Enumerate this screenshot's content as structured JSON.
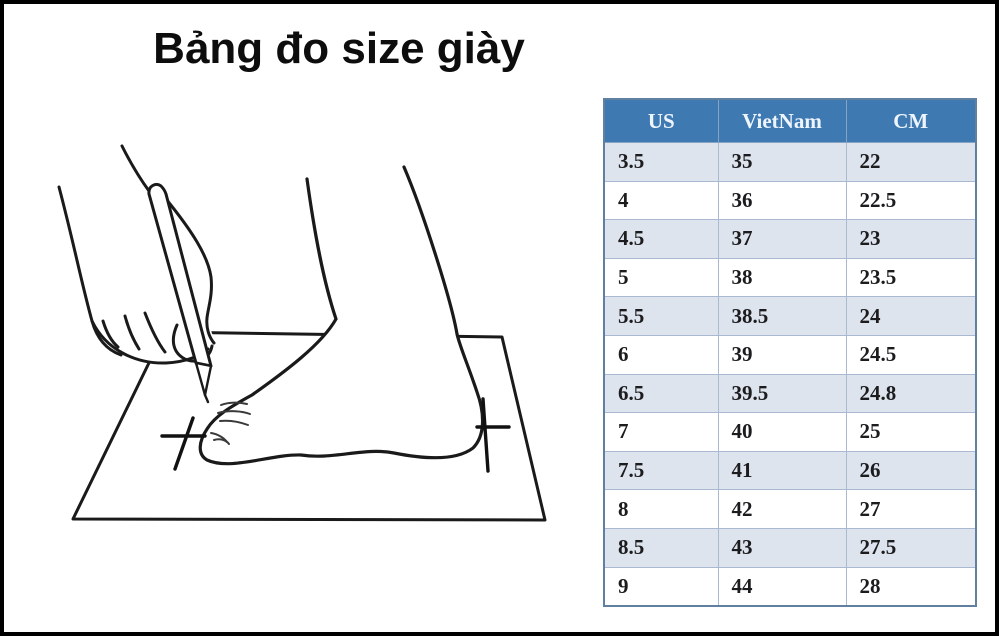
{
  "title": "Bảng đo size giày",
  "illustration": {
    "name": "foot-tracing-illustration",
    "elements": [
      "paper-sheet",
      "foot-on-paper",
      "hand-holding-pen",
      "toe-mark-cross",
      "heel-mark-cross"
    ]
  },
  "chart_data": {
    "type": "table",
    "title": "Bảng đo size giày",
    "columns": [
      "US",
      "VietNam",
      "CM"
    ],
    "rows": [
      [
        "3.5",
        "35",
        "22"
      ],
      [
        "4",
        "36",
        "22.5"
      ],
      [
        "4.5",
        "37",
        "23"
      ],
      [
        "5",
        "38",
        "23.5"
      ],
      [
        "5.5",
        "38.5",
        "24"
      ],
      [
        "6",
        "39",
        "24.5"
      ],
      [
        "6.5",
        "39.5",
        "24.8"
      ],
      [
        "7",
        "40",
        "25"
      ],
      [
        "7.5",
        "41",
        "26"
      ],
      [
        "8",
        "42",
        "27"
      ],
      [
        "8.5",
        "43",
        "27.5"
      ],
      [
        "9",
        "44",
        "28"
      ]
    ],
    "layout": {
      "header_position": "top",
      "alternating_rows": true,
      "shaded_first_row": true
    }
  },
  "colors": {
    "table_header_bg": "#3e79b2",
    "table_header_text": "#eef5fd",
    "row_shaded_bg": "#dde4ee",
    "row_white_bg": "#ffffff",
    "table_outer_border": "#61809f",
    "table_grid_line": "#a9b9cf",
    "frame": "#000000",
    "ink": "#1a1a1a"
  }
}
